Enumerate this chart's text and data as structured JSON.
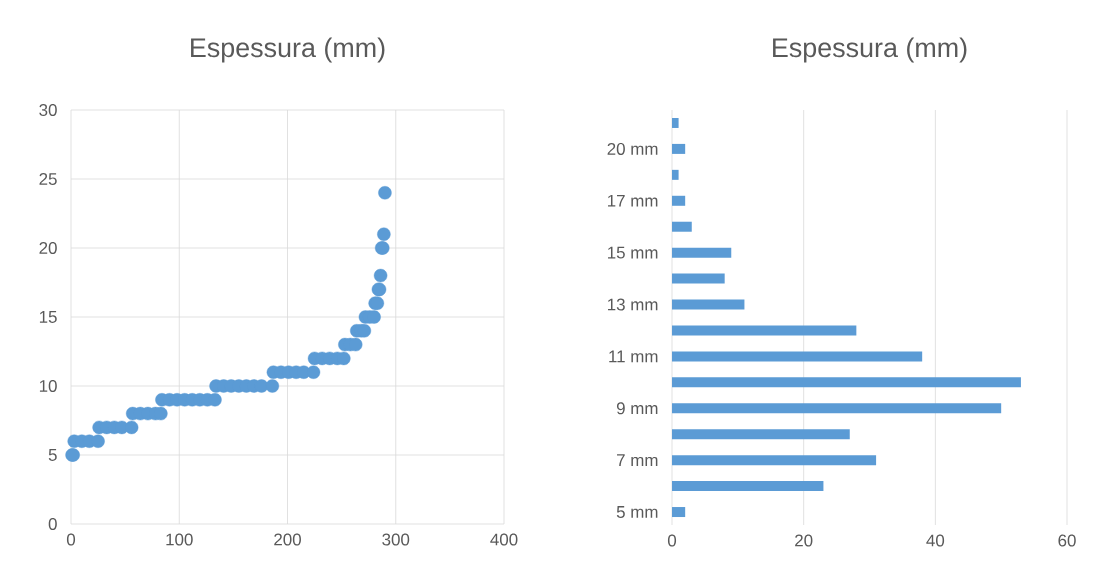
{
  "chart_data": [
    {
      "type": "scatter",
      "title": "Espessura (mm)",
      "color": "#5b9bd5",
      "marker": "circle",
      "grid": true,
      "x": [
        1,
        2,
        3,
        10,
        17,
        25,
        26,
        33,
        40,
        47,
        56,
        57,
        64,
        71,
        78,
        83,
        84,
        91,
        98,
        105,
        112,
        119,
        126,
        133,
        134,
        141,
        148,
        155,
        162,
        169,
        176,
        186,
        187,
        194,
        201,
        208,
        215,
        224,
        225,
        232,
        239,
        246,
        252,
        253,
        258,
        263,
        264,
        268,
        271,
        272,
        276,
        280,
        281,
        283,
        284,
        285,
        286,
        287,
        288,
        289,
        290
      ],
      "values": [
        5,
        5,
        6,
        6,
        6,
        6,
        7,
        7,
        7,
        7,
        7,
        8,
        8,
        8,
        8,
        8,
        9,
        9,
        9,
        9,
        9,
        9,
        9,
        9,
        10,
        10,
        10,
        10,
        10,
        10,
        10,
        10,
        11,
        11,
        11,
        11,
        11,
        11,
        12,
        12,
        12,
        12,
        12,
        13,
        13,
        13,
        14,
        14,
        14,
        15,
        15,
        15,
        16,
        16,
        17,
        17,
        18,
        20,
        20,
        21,
        24
      ],
      "xlim": [
        0,
        400
      ],
      "ylim": [
        0,
        30
      ],
      "xticks": [
        0,
        100,
        200,
        300,
        400
      ],
      "yticks": [
        0,
        5,
        10,
        15,
        20,
        25,
        30
      ]
    },
    {
      "type": "bar",
      "orientation": "horizontal",
      "title": "Espessura (mm)",
      "color": "#5b9bd5",
      "grid": "x",
      "categories": [
        null,
        "20 mm",
        null,
        "17 mm",
        null,
        "15 mm",
        null,
        "13 mm",
        null,
        "11 mm",
        null,
        "9 mm",
        null,
        "7 mm",
        null,
        "5 mm"
      ],
      "values": [
        1,
        2,
        1,
        2,
        3,
        9,
        8,
        11,
        28,
        38,
        53,
        50,
        27,
        31,
        23,
        2
      ],
      "xlim": [
        0,
        60
      ],
      "xticks": [
        0,
        20,
        40,
        60
      ]
    }
  ]
}
